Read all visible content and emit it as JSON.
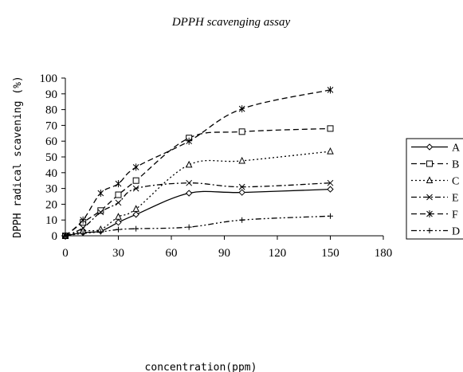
{
  "chart_data": {
    "type": "line",
    "title": "DPPH scavenging assay",
    "xlabel": "concentration(ppm)",
    "ylabel": "DPPH radical scavening (%)",
    "xlim": [
      0,
      180
    ],
    "ylim": [
      0,
      100
    ],
    "xticks": [
      0,
      30,
      60,
      90,
      120,
      150,
      180
    ],
    "yticks": [
      0,
      10,
      20,
      30,
      40,
      50,
      60,
      70,
      80,
      90,
      100
    ],
    "grid": false,
    "legend_position": "right",
    "x": [
      0,
      10,
      20,
      30,
      40,
      70,
      100,
      150
    ],
    "series": [
      {
        "name": "A",
        "values": [
          0,
          2,
          3,
          8.5,
          13.5,
          27,
          27.5,
          29.5
        ],
        "marker": "diamond",
        "dash": "solid"
      },
      {
        "name": "B",
        "values": [
          0,
          8.5,
          16,
          26,
          35,
          62,
          66,
          68
        ],
        "marker": "square",
        "dash": "dash"
      },
      {
        "name": "C",
        "values": [
          0,
          3,
          4,
          12,
          17,
          45,
          47.5,
          53.5
        ],
        "marker": "triangle",
        "dash": "dot"
      },
      {
        "name": "E",
        "values": [
          0,
          5,
          15,
          21,
          30,
          33.5,
          31,
          33.5
        ],
        "marker": "x",
        "dash": "dashdot"
      },
      {
        "name": "F",
        "values": [
          0,
          10,
          27,
          33,
          43.5,
          60,
          80.5,
          92.5
        ],
        "marker": "star",
        "dash": "dash"
      },
      {
        "name": "D",
        "values": [
          0,
          1.5,
          2.5,
          4,
          4.5,
          5.5,
          10,
          12.5
        ],
        "marker": "plus",
        "dash": "dashdotdot"
      }
    ]
  }
}
